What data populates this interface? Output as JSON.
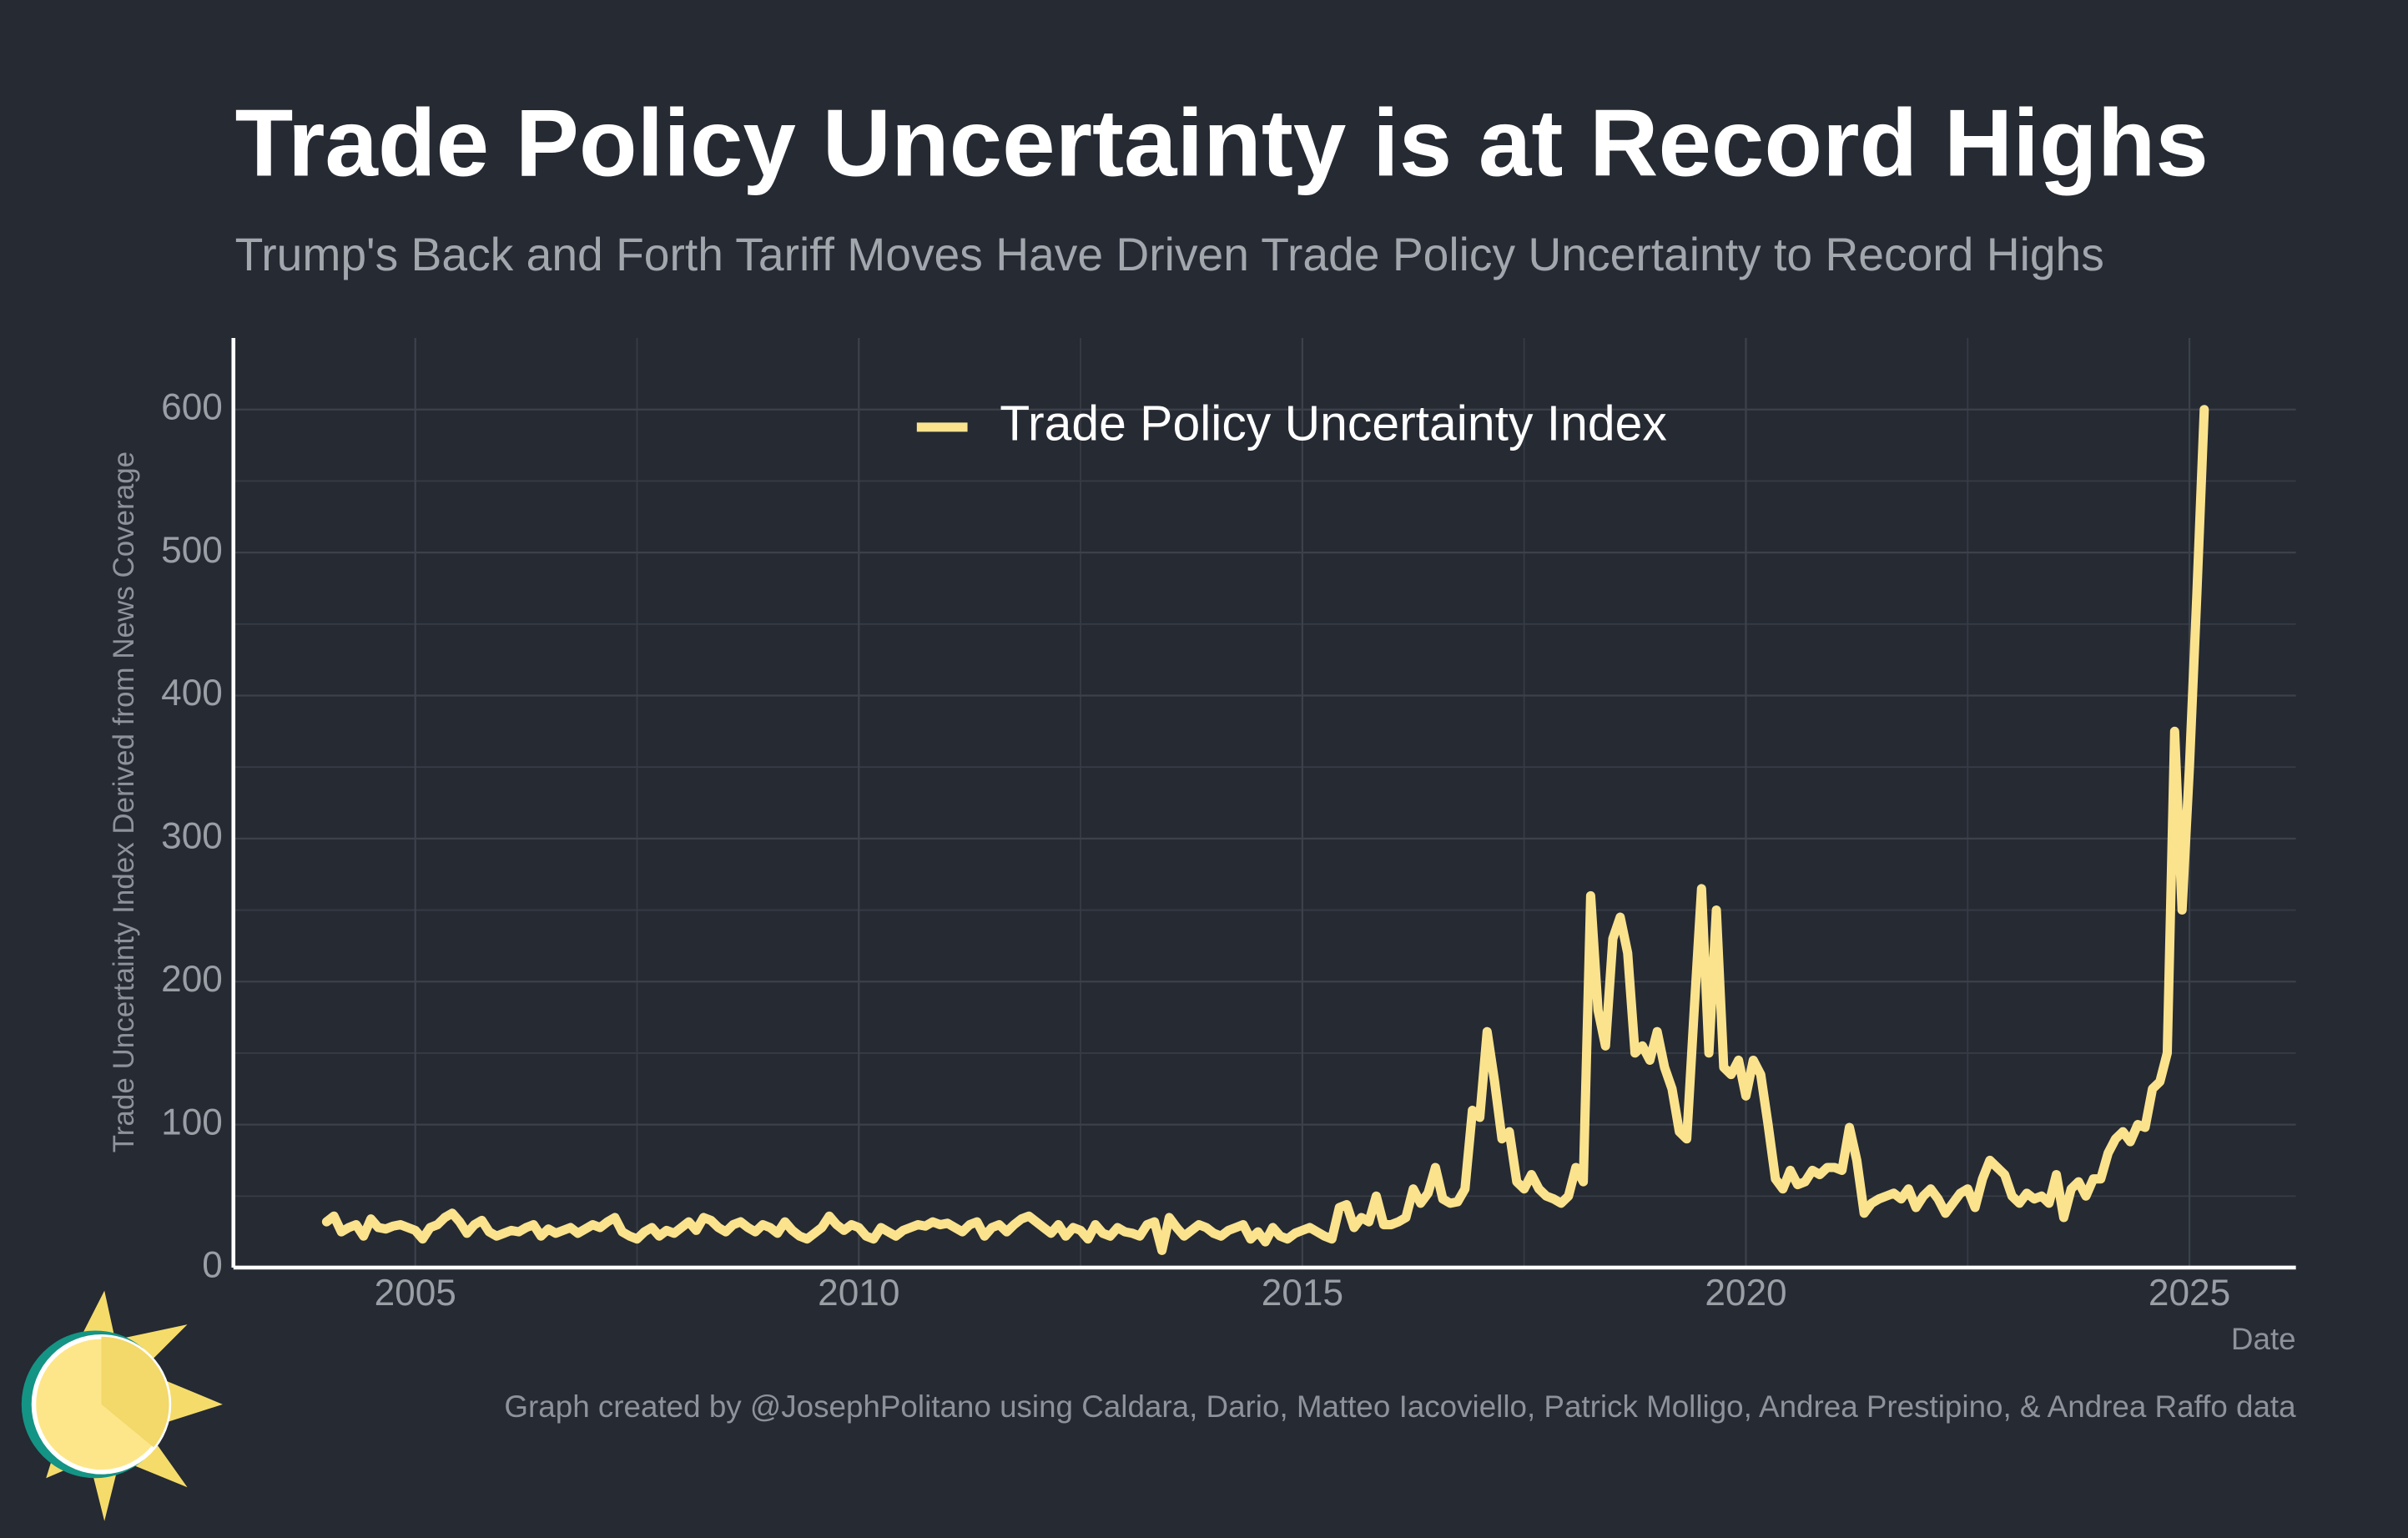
{
  "chart_data": {
    "type": "line",
    "title": "Trade Policy Uncertainty is at Record Highs",
    "subtitle": "Trump's Back and Forth Tariff Moves Have Driven Trade Policy Uncertainty to Record Highs",
    "x_label": "Date",
    "y_label": "Trade Uncertainty Index Derived from News Coverage",
    "source": "Graph created by @JosephPolitano using Caldara, Dario, Matteo Iacoviello, Patrick Molligo, Andrea Prestipino, & Andrea Raffo data",
    "legend": "top center",
    "grid": true,
    "xlim": [
      2002.95,
      2026.2
    ],
    "xticks": [
      2005,
      2010,
      2015,
      2020,
      2025
    ],
    "xminorticks": [
      2007.5,
      2012.5,
      2017.5,
      2022.5
    ],
    "ylim": [
      0,
      650
    ],
    "yticks": [
      0,
      100,
      200,
      300,
      400,
      500,
      600
    ],
    "yminorticks": [
      50,
      150,
      250,
      350,
      450,
      550
    ],
    "x": [
      2004,
      2004.083,
      2004.167,
      2004.25,
      2004.333,
      2004.417,
      2004.5,
      2004.583,
      2004.667,
      2004.75,
      2004.833,
      2004.917,
      2005,
      2005.083,
      2005.167,
      2005.25,
      2005.333,
      2005.417,
      2005.5,
      2005.583,
      2005.667,
      2005.75,
      2005.833,
      2005.917,
      2006,
      2006.083,
      2006.167,
      2006.25,
      2006.333,
      2006.417,
      2006.5,
      2006.583,
      2006.667,
      2006.75,
      2006.833,
      2006.917,
      2007,
      2007.083,
      2007.167,
      2007.25,
      2007.333,
      2007.417,
      2007.5,
      2007.583,
      2007.667,
      2007.75,
      2007.833,
      2007.917,
      2008,
      2008.083,
      2008.167,
      2008.25,
      2008.333,
      2008.417,
      2008.5,
      2008.583,
      2008.667,
      2008.75,
      2008.833,
      2008.917,
      2009,
      2009.083,
      2009.167,
      2009.25,
      2009.333,
      2009.417,
      2009.5,
      2009.583,
      2009.667,
      2009.75,
      2009.833,
      2009.917,
      2010,
      2010.083,
      2010.167,
      2010.25,
      2010.333,
      2010.417,
      2010.5,
      2010.583,
      2010.667,
      2010.75,
      2010.833,
      2010.917,
      2011,
      2011.083,
      2011.167,
      2011.25,
      2011.333,
      2011.417,
      2011.5,
      2011.583,
      2011.667,
      2011.75,
      2011.833,
      2011.917,
      2012,
      2012.083,
      2012.167,
      2012.25,
      2012.333,
      2012.417,
      2012.5,
      2012.583,
      2012.667,
      2012.75,
      2012.833,
      2012.917,
      2013,
      2013.083,
      2013.167,
      2013.25,
      2013.333,
      2013.417,
      2013.5,
      2013.583,
      2013.667,
      2013.75,
      2013.833,
      2013.917,
      2014,
      2014.083,
      2014.167,
      2014.25,
      2014.333,
      2014.417,
      2014.5,
      2014.583,
      2014.667,
      2014.75,
      2014.833,
      2014.917,
      2015,
      2015.083,
      2015.167,
      2015.25,
      2015.333,
      2015.417,
      2015.5,
      2015.583,
      2015.667,
      2015.75,
      2015.833,
      2015.917,
      2016,
      2016.083,
      2016.167,
      2016.25,
      2016.333,
      2016.417,
      2016.5,
      2016.583,
      2016.667,
      2016.75,
      2016.833,
      2016.917,
      2017,
      2017.083,
      2017.167,
      2017.25,
      2017.333,
      2017.417,
      2017.5,
      2017.583,
      2017.667,
      2017.75,
      2017.833,
      2017.917,
      2018,
      2018.083,
      2018.167,
      2018.25,
      2018.333,
      2018.417,
      2018.5,
      2018.583,
      2018.667,
      2018.75,
      2018.833,
      2018.917,
      2019,
      2019.083,
      2019.167,
      2019.25,
      2019.333,
      2019.417,
      2019.5,
      2019.583,
      2019.667,
      2019.75,
      2019.833,
      2019.917,
      2020,
      2020.083,
      2020.167,
      2020.25,
      2020.333,
      2020.417,
      2020.5,
      2020.583,
      2020.667,
      2020.75,
      2020.833,
      2020.917,
      2021,
      2021.083,
      2021.167,
      2021.25,
      2021.333,
      2021.417,
      2021.5,
      2021.583,
      2021.667,
      2021.75,
      2021.833,
      2021.917,
      2022,
      2022.083,
      2022.167,
      2022.25,
      2022.333,
      2022.417,
      2022.5,
      2022.583,
      2022.667,
      2022.75,
      2022.833,
      2022.917,
      2023,
      2023.083,
      2023.167,
      2023.25,
      2023.333,
      2023.417,
      2023.5,
      2023.583,
      2023.667,
      2023.75,
      2023.833,
      2023.917,
      2024,
      2024.083,
      2024.167,
      2024.25,
      2024.333,
      2024.417,
      2024.5,
      2024.583,
      2024.667,
      2024.75,
      2024.833,
      2024.917,
      2025,
      2025.083,
      2025.167
    ],
    "series": [
      {
        "name": "Trade Policy Uncertainty Index",
        "color": "#fbe38e",
        "values": [
          32,
          36,
          25,
          28,
          30,
          22,
          34,
          28,
          27,
          29,
          30,
          28,
          26,
          20,
          28,
          30,
          35,
          38,
          32,
          24,
          30,
          33,
          25,
          22,
          24,
          26,
          25,
          28,
          30,
          22,
          27,
          24,
          26,
          28,
          24,
          27,
          30,
          28,
          32,
          35,
          25,
          22,
          20,
          25,
          28,
          22,
          26,
          24,
          28,
          32,
          26,
          35,
          33,
          28,
          25,
          30,
          32,
          28,
          25,
          30,
          28,
          24,
          32,
          26,
          22,
          20,
          24,
          28,
          36,
          30,
          26,
          30,
          28,
          22,
          20,
          28,
          25,
          22,
          26,
          28,
          30,
          29,
          32,
          30,
          31,
          28,
          25,
          30,
          32,
          22,
          28,
          30,
          25,
          30,
          34,
          36,
          32,
          28,
          24,
          30,
          22,
          28,
          26,
          20,
          30,
          24,
          22,
          28,
          25,
          24,
          22,
          30,
          32,
          12,
          35,
          28,
          22,
          26,
          30,
          28,
          24,
          22,
          26,
          28,
          30,
          20,
          25,
          18,
          28,
          22,
          20,
          24,
          26,
          28,
          25,
          22,
          20,
          42,
          44,
          28,
          35,
          32,
          50,
          30,
          30,
          32,
          35,
          55,
          45,
          52,
          70,
          48,
          45,
          46,
          55,
          110,
          105,
          165,
          130,
          90,
          95,
          60,
          55,
          65,
          55,
          50,
          48,
          45,
          50,
          70,
          60,
          260,
          180,
          155,
          230,
          245,
          220,
          150,
          155,
          145,
          165,
          140,
          125,
          95,
          90,
          180,
          265,
          150,
          250,
          140,
          135,
          145,
          120,
          145,
          135,
          100,
          62,
          55,
          68,
          58,
          60,
          68,
          65,
          70,
          70,
          68,
          98,
          75,
          38,
          45,
          48,
          50,
          52,
          48,
          55,
          42,
          50,
          55,
          48,
          38,
          45,
          52,
          55,
          42,
          62,
          75,
          70,
          65,
          50,
          45,
          52,
          48,
          50,
          45,
          65,
          35,
          55,
          60,
          50,
          62,
          62,
          80,
          90,
          95,
          88,
          100,
          98,
          125,
          130,
          150,
          375,
          250,
          350,
          470,
          600
        ]
      }
    ]
  }
}
